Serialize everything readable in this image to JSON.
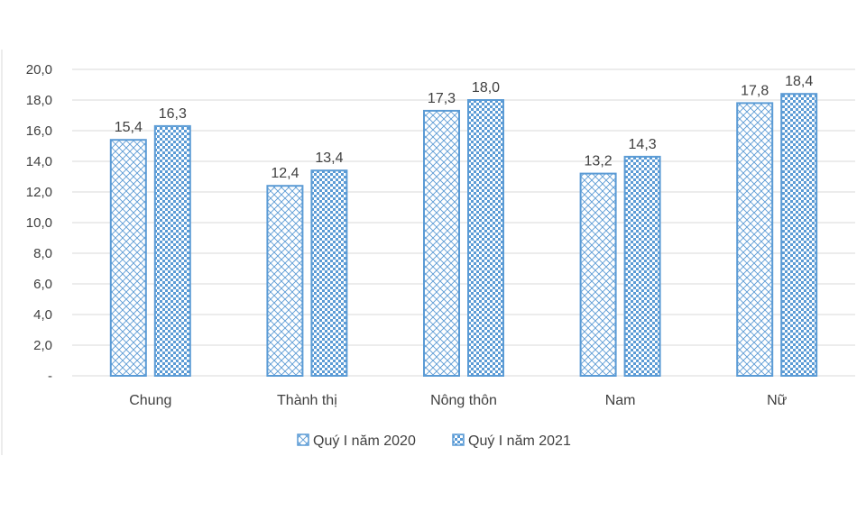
{
  "chart_data": {
    "type": "bar",
    "title": "",
    "xlabel": "",
    "ylabel": "",
    "categories": [
      "Chung",
      "Thành thị",
      "Nông thôn",
      "Nam",
      "Nữ"
    ],
    "series": [
      {
        "name": "Quý I năm 2020",
        "values": [
          15.4,
          12.4,
          17.3,
          13.2,
          17.8
        ],
        "labels": [
          "15,4",
          "12,4",
          "17,3",
          "13,2",
          "17,8"
        ],
        "pattern": "diagonal-cross"
      },
      {
        "name": "Quý I năm 2021",
        "values": [
          16.3,
          13.4,
          18.0,
          14.3,
          18.4
        ],
        "labels": [
          "16,3",
          "13,4",
          "18,0",
          "14,3",
          "18,4"
        ],
        "pattern": "checker"
      }
    ],
    "ylim": [
      0,
      20
    ],
    "yticks": [
      0,
      2,
      4,
      6,
      8,
      10,
      12,
      14,
      16,
      18,
      20
    ],
    "ytick_labels": [
      "-",
      "2,0",
      "4,0",
      "6,0",
      "8,0",
      "10,0",
      "12,0",
      "14,0",
      "16,0",
      "18,0",
      "20,0"
    ],
    "grid": true,
    "legend_position": "bottom",
    "colors": {
      "bar_stroke": "#5B9BD5",
      "pattern": "#5B9BD5",
      "grid": "#D9D9D9",
      "text": "#404040"
    }
  }
}
